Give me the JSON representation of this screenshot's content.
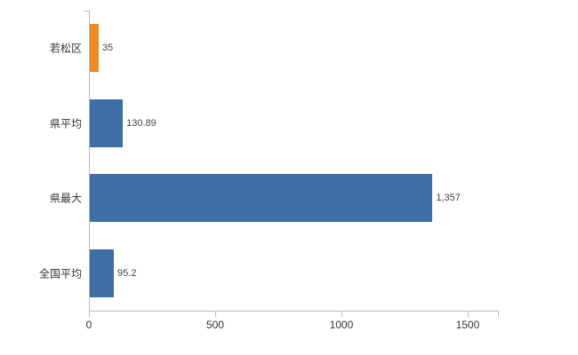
{
  "chart_data": {
    "type": "bar",
    "orientation": "horizontal",
    "title": "",
    "xlabel": "",
    "ylabel": "",
    "categories": [
      "若松区",
      "県平均",
      "県最大",
      "全国平均"
    ],
    "values": [
      35,
      130.89,
      1357,
      95.2
    ],
    "value_labels": [
      "35",
      "130.89",
      "1,357",
      "95.2"
    ],
    "series": [
      {
        "name": "value",
        "values": [
          35,
          130.89,
          1357,
          95.2
        ]
      }
    ],
    "x_ticks": [
      0,
      500,
      1000,
      1500
    ],
    "x_tick_labels": [
      "0",
      "500",
      "1000",
      "1500"
    ],
    "xlim": [
      0,
      1620
    ],
    "bar_colors": [
      "#ed8a22",
      "#3d6ea6",
      "#3d6ea6",
      "#3d6ea6"
    ],
    "accent_blue": "#3d6ea6",
    "accent_orange": "#ed8a22",
    "axis_color": "#aebecd",
    "grid": false,
    "legend": "none",
    "background": "#ffffff"
  }
}
